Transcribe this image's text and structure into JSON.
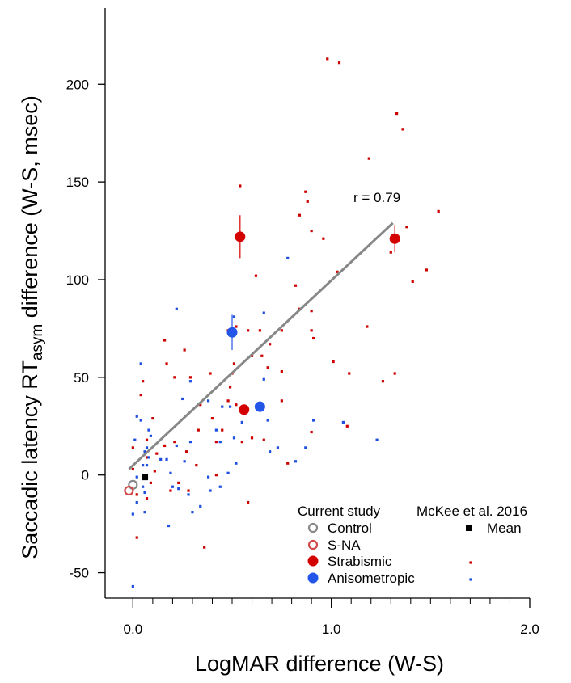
{
  "chart_data": {
    "type": "scatter",
    "xlabel": "LogMAR difference (W-S)",
    "ylabel": [
      "Saccadic latency RT",
      "asym",
      " difference (W-S, msec)"
    ],
    "annotation": "r = 0.79",
    "xlim": [
      -0.14,
      2.0
    ],
    "ylim": [
      -63,
      239
    ],
    "xticks": [
      {
        "value": 0,
        "label": "0.0"
      },
      {
        "value": 1,
        "label": "1.0"
      },
      {
        "value": 2,
        "label": "2.0"
      }
    ],
    "xminorticks": [
      0.1,
      0.2,
      0.3,
      0.4,
      0.5,
      0.6,
      0.7,
      0.8,
      0.9,
      1.1,
      1.2,
      1.3,
      1.4,
      1.5,
      1.6,
      1.7,
      1.8,
      1.9
    ],
    "yticks": [
      -50,
      0,
      50,
      100,
      150,
      200
    ],
    "legend_titles": [
      "Current study",
      "McKee et al. 2016"
    ],
    "fit": {
      "color": "#888888",
      "x": [
        -0.02,
        1.31
      ],
      "y": [
        3,
        129
      ]
    },
    "series": [
      {
        "name": "Control",
        "color": "#888888",
        "marker": "open-circle",
        "x": [
          0.0
        ],
        "values": [
          -5
        ]
      },
      {
        "name": "S-NA",
        "color": "#d04848",
        "marker": "open-circle",
        "x": [
          -0.02
        ],
        "values": [
          -8
        ]
      },
      {
        "name": "Strabismic",
        "color": "#d40000",
        "marker": "circle",
        "x": [
          0.54,
          0.56,
          1.32
        ],
        "values": [
          122,
          33.5,
          121
        ],
        "errors": [
          11,
          null,
          7
        ]
      },
      {
        "name": "Anisometropic",
        "color": "#2255e8",
        "marker": "circle",
        "x": [
          0.5,
          0.64
        ],
        "values": [
          73,
          35
        ],
        "errors": [
          9,
          null
        ]
      },
      {
        "name": "Mean",
        "color": "#000000",
        "marker": "square",
        "x": [
          0.06
        ],
        "values": [
          -1
        ]
      },
      {
        "color": "#cc0000",
        "marker": "small-square",
        "x": [
          0.98,
          1.04,
          1.33,
          1.36,
          1.19,
          1.54,
          0.87,
          0.54,
          0.88,
          0.84,
          0.9,
          0.96,
          1.38,
          1.41,
          1.48,
          1.03,
          0.82,
          0.62,
          1.3,
          1.18,
          1.01,
          1.09,
          1.32,
          1.26,
          1.08,
          0.9,
          0.9,
          0.91,
          0.84,
          0.75,
          0.69,
          0.65,
          0.58,
          0.64,
          0.52,
          0.48,
          0.51,
          0.6,
          0.5,
          0.68,
          0.75,
          0.49,
          0.39,
          0.26,
          0.16,
          0.17,
          0.29,
          0.21,
          0.05,
          0.04,
          0.48,
          0.52,
          0.34,
          0.75,
          0.9,
          0.66,
          0.78,
          0.58,
          0.36,
          0.02,
          0.0,
          0.1,
          0.07,
          0.16,
          0.21,
          0.27,
          0.33,
          0.4,
          0.45,
          0.42,
          0.55,
          0.6,
          0.23,
          0.19,
          0.28,
          0.0,
          0.07,
          0.02,
          0.07,
          0.12,
          0.09,
          0.11,
          0.42,
          0.32
        ],
        "values": [
          213,
          211,
          185,
          177,
          162,
          135,
          145,
          148,
          140,
          133,
          125,
          121,
          127,
          99,
          105,
          104,
          97,
          102,
          114,
          76,
          58,
          52,
          52,
          48,
          25,
          84,
          74,
          70,
          85,
          74,
          67,
          61,
          74,
          74,
          76,
          74,
          57,
          61,
          52,
          55,
          53,
          45,
          52,
          64,
          69,
          57,
          50,
          50,
          48,
          41,
          38,
          36,
          36,
          38,
          22,
          18,
          6,
          -14,
          -37,
          -32,
          14,
          29,
          18,
          15,
          17,
          12,
          23,
          29,
          23,
          17,
          17,
          19,
          -4,
          -8,
          -8,
          3,
          9,
          -10,
          -12,
          11,
          -4,
          2,
          0,
          5
        ]
      },
      {
        "color": "#1e4fe0",
        "marker": "small-square",
        "x": [
          0.78,
          0.22,
          0.66,
          0.51,
          0.04,
          0.29,
          0.25,
          0.38,
          0.45,
          0.66,
          0.49,
          0.68,
          0.02,
          0.04,
          0.09,
          0.08,
          0.07,
          0.06,
          0.07,
          0.02,
          0.05,
          0.08,
          0.14,
          0.17,
          0.22,
          0.29,
          0.26,
          0.19,
          0.2,
          0.23,
          0.28,
          0.3,
          0.34,
          0.38,
          0.39,
          0.44,
          0.42,
          0.51,
          0.55,
          0.52,
          0.48,
          0.44,
          0.69,
          0.73,
          0.82,
          0.87,
          0.91,
          1.06,
          1.23,
          0.18,
          0.0,
          0.02,
          0.0,
          0.01,
          0.06,
          0.06,
          0.05
        ],
        "values": [
          111,
          85,
          83,
          81,
          57,
          48,
          39,
          38,
          35,
          49,
          35,
          28,
          30,
          28,
          20,
          23,
          14,
          12,
          5,
          -1,
          5,
          9,
          8,
          8,
          15,
          17,
          7,
          1,
          -6,
          -7,
          -10,
          -19,
          -16,
          -1,
          -8,
          17,
          23,
          19,
          27,
          6,
          1,
          -6,
          12,
          14,
          7,
          14,
          28,
          27,
          18,
          -26,
          -57,
          -14,
          -20,
          18,
          -19,
          -9,
          -6
        ]
      }
    ]
  }
}
